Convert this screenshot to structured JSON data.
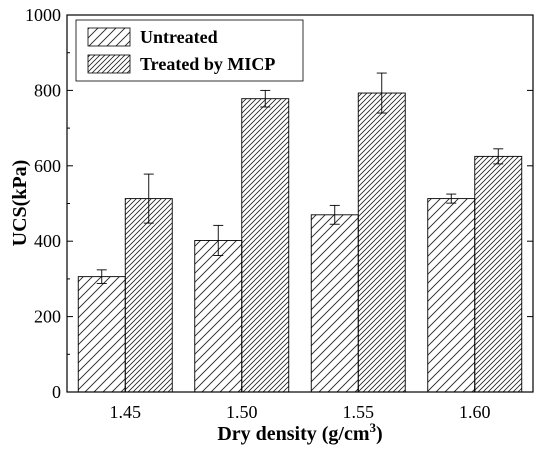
{
  "chart_data": {
    "type": "bar",
    "xlabel": "Dry density (g/cm",
    "xlabel_sup": "3",
    "xlabel_close": ")",
    "ylabel": "UCS(kPa)",
    "ylim": [
      0,
      1000
    ],
    "yticks": [
      "0",
      "200",
      "400",
      "600",
      "800",
      "1000"
    ],
    "categories": [
      "1.45",
      "1.50",
      "1.55",
      "1.60"
    ],
    "series": [
      {
        "name": "Untreated",
        "values": [
          306,
          402,
          470,
          513
        ],
        "errors": [
          18,
          40,
          25,
          12
        ],
        "hatch": "sparse"
      },
      {
        "name": "Treated by MICP",
        "values": [
          513,
          778,
          793,
          625
        ],
        "errors": [
          65,
          22,
          53,
          20
        ],
        "hatch": "dense"
      }
    ],
    "legend_position": "top-left",
    "grid": false
  }
}
